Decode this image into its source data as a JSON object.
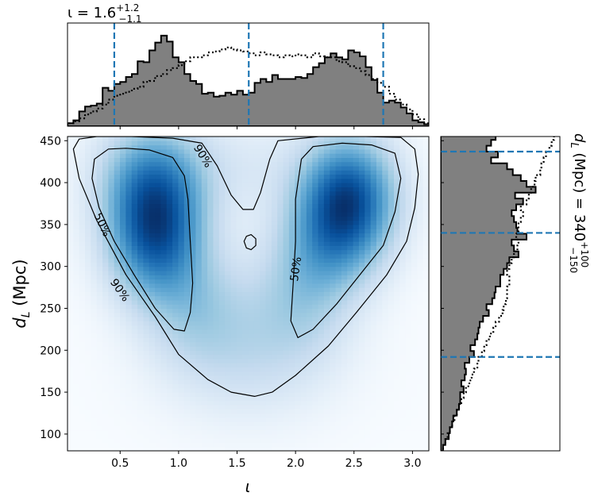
{
  "chart_data": [
    {
      "panel": "top-marginal",
      "type": "histogram",
      "title": "ι = 1.6",
      "title_sup": "+1.2",
      "title_sub": "−1.1",
      "xlim": [
        0.05,
        3.14
      ],
      "bins_left": [
        0.05,
        0.1,
        0.15,
        0.2,
        0.25,
        0.3,
        0.35,
        0.4,
        0.45,
        0.5,
        0.55,
        0.6,
        0.65,
        0.7,
        0.75,
        0.8,
        0.85,
        0.9,
        0.95,
        1.0,
        1.05,
        1.1,
        1.15,
        1.2,
        1.25,
        1.3,
        1.35,
        1.4,
        1.45,
        1.5,
        1.55,
        1.6,
        1.65,
        1.7,
        1.75,
        1.8,
        1.85,
        1.9,
        1.95,
        2.0,
        2.05,
        2.1,
        2.15,
        2.2,
        2.25,
        2.3,
        2.35,
        2.4,
        2.45,
        2.5,
        2.55,
        2.6,
        2.65,
        2.7,
        2.75,
        2.8,
        2.85,
        2.9,
        2.95,
        3.0,
        3.05,
        3.1
      ],
      "series": [
        {
          "kind": "filled",
          "heights": [
            0.03,
            0.06,
            0.15,
            0.2,
            0.21,
            0.23,
            0.39,
            0.36,
            0.43,
            0.45,
            0.5,
            0.53,
            0.66,
            0.65,
            0.77,
            0.85,
            0.92,
            0.86,
            0.7,
            0.65,
            0.53,
            0.46,
            0.43,
            0.33,
            0.34,
            0.3,
            0.31,
            0.34,
            0.32,
            0.36,
            0.32,
            0.34,
            0.44,
            0.48,
            0.45,
            0.52,
            0.48,
            0.48,
            0.48,
            0.5,
            0.49,
            0.53,
            0.6,
            0.64,
            0.7,
            0.74,
            0.7,
            0.68,
            0.77,
            0.75,
            0.71,
            0.6,
            0.47,
            0.34,
            0.24,
            0.26,
            0.24,
            0.19,
            0.13,
            0.06,
            0.04,
            0.02
          ]
        },
        {
          "kind": "dotted",
          "heights": [
            0.03,
            0.05,
            0.08,
            0.12,
            0.15,
            0.18,
            0.22,
            0.27,
            0.31,
            0.33,
            0.35,
            0.38,
            0.4,
            0.45,
            0.46,
            0.51,
            0.53,
            0.57,
            0.59,
            0.62,
            0.66,
            0.7,
            0.7,
            0.72,
            0.75,
            0.76,
            0.78,
            0.8,
            0.78,
            0.77,
            0.76,
            0.74,
            0.72,
            0.75,
            0.73,
            0.72,
            0.7,
            0.72,
            0.71,
            0.73,
            0.72,
            0.7,
            0.74,
            0.71,
            0.7,
            0.7,
            0.66,
            0.65,
            0.61,
            0.59,
            0.56,
            0.52,
            0.48,
            0.44,
            0.4,
            0.33,
            0.27,
            0.22,
            0.17,
            0.12,
            0.07,
            0.03
          ]
        }
      ],
      "reference_lines": [
        0.45,
        1.6,
        2.75
      ]
    },
    {
      "panel": "joint-density",
      "type": "heatmap",
      "xlabel": "ι",
      "ylabel": "dL (Mpc)",
      "ylabel_main": "d",
      "ylabel_sub": "L",
      "ylabel_unit": " (Mpc)",
      "xlim": [
        0.05,
        3.14
      ],
      "ylim": [
        80,
        455
      ],
      "xticks": [
        0.5,
        1.0,
        1.5,
        2.0,
        2.5,
        3.0
      ],
      "xtick_labels": [
        "0.5",
        "1.0",
        "1.5",
        "2.0",
        "2.5",
        "3.0"
      ],
      "yticks": [
        100,
        150,
        200,
        250,
        300,
        350,
        400,
        450
      ],
      "ytick_labels": [
        "100",
        "150",
        "200",
        "250",
        "300",
        "350",
        "400",
        "450"
      ],
      "density_peaks": [
        {
          "x": 0.8,
          "y": 340,
          "sx": 0.28,
          "sy": 52,
          "amp": 1.0
        },
        {
          "x": 0.78,
          "y": 410,
          "sx": 0.32,
          "sy": 45,
          "amp": 0.55
        },
        {
          "x": 2.45,
          "y": 385,
          "sx": 0.28,
          "sy": 48,
          "amp": 1.0
        },
        {
          "x": 2.3,
          "y": 330,
          "sx": 0.3,
          "sy": 45,
          "amp": 0.45
        },
        {
          "x": 1.6,
          "y": 200,
          "sx": 0.5,
          "sy": 55,
          "amp": 0.24
        },
        {
          "x": 1.15,
          "y": 255,
          "sx": 0.3,
          "sy": 50,
          "amp": 0.28
        },
        {
          "x": 2.05,
          "y": 265,
          "sx": 0.3,
          "sy": 50,
          "amp": 0.28
        },
        {
          "x": 1.6,
          "y": 420,
          "sx": 0.4,
          "sy": 40,
          "amp": 0.12
        }
      ],
      "contours": [
        {
          "level": "90%",
          "points": [
            [
              0.1,
              440
            ],
            [
              0.15,
              452
            ],
            [
              0.3,
              455
            ],
            [
              0.6,
              455
            ],
            [
              0.95,
              453
            ],
            [
              1.2,
              447
            ],
            [
              1.33,
              420
            ],
            [
              1.45,
              385
            ],
            [
              1.55,
              368
            ],
            [
              1.64,
              368
            ],
            [
              1.7,
              388
            ],
            [
              1.78,
              428
            ],
            [
              1.85,
              450
            ],
            [
              2.2,
              455
            ],
            [
              2.6,
              455
            ],
            [
              2.9,
              454
            ],
            [
              3.02,
              440
            ],
            [
              3.05,
              410
            ],
            [
              3.02,
              370
            ],
            [
              2.95,
              330
            ],
            [
              2.78,
              290
            ],
            [
              2.52,
              245
            ],
            [
              2.28,
              205
            ],
            [
              2.0,
              170
            ],
            [
              1.8,
              150
            ],
            [
              1.65,
              145
            ],
            [
              1.45,
              150
            ],
            [
              1.25,
              165
            ],
            [
              1.0,
              195
            ],
            [
              0.8,
              240
            ],
            [
              0.55,
              290
            ],
            [
              0.3,
              355
            ],
            [
              0.15,
              405
            ],
            [
              0.1,
              440
            ]
          ]
        },
        {
          "level": "90%",
          "points": [
            [
              1.56,
              330
            ],
            [
              1.58,
              336
            ],
            [
              1.62,
              338
            ],
            [
              1.66,
              333
            ],
            [
              1.66,
              325
            ],
            [
              1.62,
              320
            ],
            [
              1.58,
              322
            ],
            [
              1.56,
              330
            ]
          ]
        },
        {
          "level": "50%",
          "points": [
            [
              0.28,
              428
            ],
            [
              0.4,
              440
            ],
            [
              0.55,
              441
            ],
            [
              0.75,
              439
            ],
            [
              0.95,
              430
            ],
            [
              1.05,
              408
            ],
            [
              1.08,
              380
            ],
            [
              1.1,
              330
            ],
            [
              1.12,
              280
            ],
            [
              1.1,
              245
            ],
            [
              1.05,
              223
            ],
            [
              0.96,
              225
            ],
            [
              0.8,
              250
            ],
            [
              0.62,
              290
            ],
            [
              0.45,
              330
            ],
            [
              0.32,
              370
            ],
            [
              0.26,
              405
            ],
            [
              0.28,
              428
            ]
          ]
        },
        {
          "level": "50%",
          "points": [
            [
              2.05,
              428
            ],
            [
              2.15,
              443
            ],
            [
              2.4,
              447
            ],
            [
              2.65,
              445
            ],
            [
              2.85,
              435
            ],
            [
              2.9,
              405
            ],
            [
              2.85,
              365
            ],
            [
              2.75,
              325
            ],
            [
              2.55,
              290
            ],
            [
              2.35,
              255
            ],
            [
              2.15,
              225
            ],
            [
              2.02,
              215
            ],
            [
              1.96,
              235
            ],
            [
              1.98,
              280
            ],
            [
              2.0,
              330
            ],
            [
              2.0,
              380
            ],
            [
              2.05,
              428
            ]
          ]
        }
      ],
      "contour_labels": [
        {
          "text": "90%",
          "x": 1.21,
          "y": 432,
          "angle": 58
        },
        {
          "text": "50%",
          "x": 0.35,
          "y": 350,
          "angle": 65
        },
        {
          "text": "90%",
          "x": 0.5,
          "y": 272,
          "angle": 55
        },
        {
          "text": "50%",
          "x": 2.0,
          "y": 297,
          "angle": -82
        }
      ]
    },
    {
      "panel": "right-marginal",
      "type": "histogram",
      "title": "dL (Mpc) = 340",
      "title_prefix": "d",
      "title_prefix_sub": "L",
      "title_body": " (Mpc) = 340",
      "title_sup": "+100",
      "title_sub": "−150",
      "ylim": [
        80,
        455
      ],
      "bins_bottom": [
        80,
        87,
        94,
        101,
        108,
        115,
        122,
        129,
        136,
        143,
        150,
        157,
        164,
        171,
        178,
        185,
        192,
        199,
        206,
        213,
        220,
        227,
        234,
        241,
        248,
        255,
        262,
        269,
        276,
        283,
        290,
        297,
        304,
        311,
        318,
        325,
        332,
        339,
        346,
        353,
        360,
        367,
        374,
        381,
        388,
        395,
        402,
        409,
        416,
        423,
        430,
        437,
        444,
        451
      ],
      "series": [
        {
          "kind": "filled",
          "widths": [
            0.02,
            0.04,
            0.07,
            0.08,
            0.1,
            0.11,
            0.14,
            0.16,
            0.17,
            0.17,
            0.2,
            0.18,
            0.21,
            0.22,
            0.21,
            0.25,
            0.29,
            0.26,
            0.3,
            0.32,
            0.33,
            0.34,
            0.37,
            0.42,
            0.4,
            0.45,
            0.47,
            0.48,
            0.52,
            0.52,
            0.55,
            0.58,
            0.6,
            0.68,
            0.64,
            0.62,
            0.75,
            0.67,
            0.66,
            0.64,
            0.62,
            0.66,
            0.72,
            0.65,
            0.83,
            0.75,
            0.7,
            0.63,
            0.58,
            0.44,
            0.5,
            0.4,
            0.44,
            0.48
          ]
        },
        {
          "kind": "dotted",
          "widths": [
            0.02,
            0.04,
            0.06,
            0.08,
            0.1,
            0.12,
            0.14,
            0.16,
            0.18,
            0.2,
            0.22,
            0.25,
            0.27,
            0.29,
            0.32,
            0.33,
            0.36,
            0.38,
            0.4,
            0.43,
            0.46,
            0.48,
            0.51,
            0.54,
            0.55,
            0.57,
            0.58,
            0.58,
            0.6,
            0.6,
            0.58,
            0.6,
            0.62,
            0.64,
            0.67,
            0.68,
            0.66,
            0.68,
            0.68,
            0.7,
            0.72,
            0.7,
            0.75,
            0.77,
            0.79,
            0.82,
            0.83,
            0.87,
            0.88,
            0.9,
            0.92,
            0.95,
            0.97,
            0.99
          ]
        }
      ],
      "reference_lines": [
        192,
        340,
        437
      ]
    }
  ],
  "colors": {
    "hist_fill": "#808080",
    "hist_edge": "#000000",
    "reference_line": "#1f77b4",
    "colormap": "Blues"
  }
}
